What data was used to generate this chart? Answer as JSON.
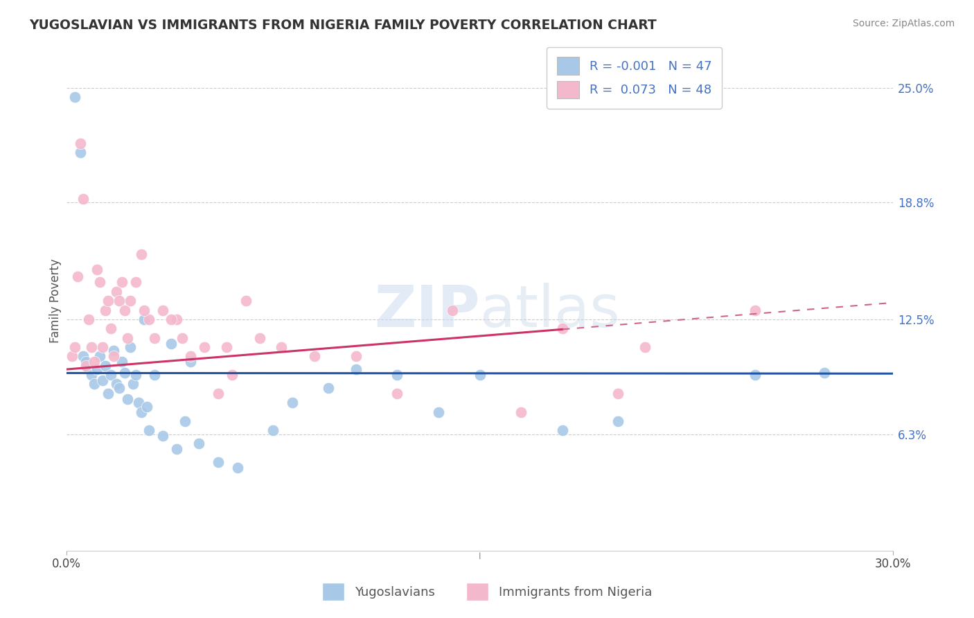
{
  "title": "YUGOSLAVIAN VS IMMIGRANTS FROM NIGERIA FAMILY POVERTY CORRELATION CHART",
  "source": "Source: ZipAtlas.com",
  "ylabel": "Family Poverty",
  "ytick_values": [
    25.0,
    18.8,
    12.5,
    6.3
  ],
  "legend_label1": "Yugoslavians",
  "legend_label2": "Immigrants from Nigeria",
  "r1": "-0.001",
  "n1": "47",
  "r2": "0.073",
  "n2": "48",
  "color_blue": "#a8c8e8",
  "color_pink": "#f4b8cc",
  "color_blue_dark": "#4472c4",
  "color_pink_dark": "#cc6688",
  "color_blue_line": "#2255aa",
  "color_pink_line": "#cc3366",
  "xlim": [
    0.0,
    30.0
  ],
  "ylim": [
    0.0,
    27.0
  ],
  "blue_intercept": 9.6,
  "blue_slope": -0.001,
  "pink_intercept": 9.8,
  "pink_slope": 0.12,
  "pink_solid_end": 18.0,
  "blue_x": [
    0.3,
    0.5,
    0.6,
    0.7,
    0.8,
    0.9,
    1.0,
    1.1,
    1.2,
    1.3,
    1.4,
    1.5,
    1.6,
    1.7,
    1.8,
    1.9,
    2.0,
    2.1,
    2.2,
    2.3,
    2.4,
    2.5,
    2.6,
    2.7,
    2.9,
    3.0,
    3.2,
    3.5,
    4.0,
    4.3,
    4.8,
    5.5,
    6.2,
    7.5,
    8.2,
    9.5,
    10.5,
    12.0,
    13.5,
    15.0,
    18.0,
    20.0,
    25.0,
    27.5,
    4.5,
    3.8,
    2.8
  ],
  "blue_y": [
    24.5,
    21.5,
    10.5,
    10.2,
    9.8,
    9.5,
    9.0,
    9.8,
    10.5,
    9.2,
    10.0,
    8.5,
    9.5,
    10.8,
    9.0,
    8.8,
    10.2,
    9.6,
    8.2,
    11.0,
    9.0,
    9.5,
    8.0,
    7.5,
    7.8,
    6.5,
    9.5,
    6.2,
    5.5,
    7.0,
    5.8,
    4.8,
    4.5,
    6.5,
    8.0,
    8.8,
    9.8,
    9.5,
    7.5,
    9.5,
    6.5,
    7.0,
    9.5,
    9.6,
    10.2,
    11.2,
    12.5
  ],
  "pink_x": [
    0.2,
    0.3,
    0.4,
    0.5,
    0.6,
    0.7,
    0.8,
    0.9,
    1.0,
    1.1,
    1.2,
    1.3,
    1.4,
    1.5,
    1.6,
    1.7,
    1.8,
    1.9,
    2.0,
    2.1,
    2.2,
    2.3,
    2.5,
    2.7,
    3.0,
    3.2,
    3.5,
    4.0,
    4.5,
    5.0,
    5.5,
    6.0,
    6.5,
    7.0,
    7.8,
    9.0,
    10.5,
    12.0,
    14.0,
    16.5,
    18.0,
    20.0,
    21.0,
    25.0,
    4.2,
    2.8,
    3.8,
    5.8
  ],
  "pink_y": [
    10.5,
    11.0,
    14.8,
    22.0,
    19.0,
    10.0,
    12.5,
    11.0,
    10.2,
    15.2,
    14.5,
    11.0,
    13.0,
    13.5,
    12.0,
    10.5,
    14.0,
    13.5,
    14.5,
    13.0,
    11.5,
    13.5,
    14.5,
    16.0,
    12.5,
    11.5,
    13.0,
    12.5,
    10.5,
    11.0,
    8.5,
    9.5,
    13.5,
    11.5,
    11.0,
    10.5,
    10.5,
    8.5,
    13.0,
    7.5,
    12.0,
    8.5,
    11.0,
    13.0,
    11.5,
    13.0,
    12.5,
    11.0
  ]
}
